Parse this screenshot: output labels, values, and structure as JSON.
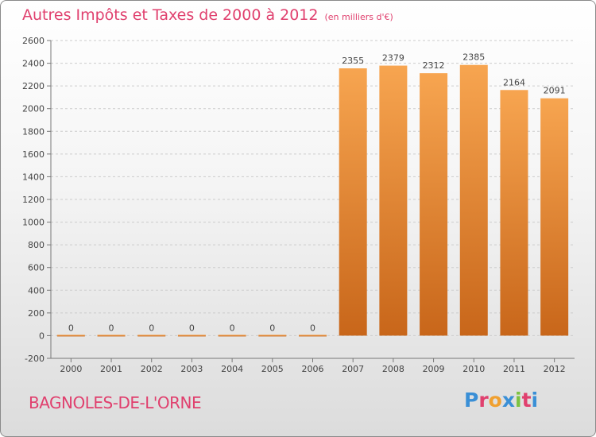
{
  "title": "Autres Impôts et Taxes de 2000 à 2012",
  "unit_label": "(en milliers d'€)",
  "location": "BAGNOLES-DE-L'ORNE",
  "logo": {
    "text": "Proxiti",
    "colors": [
      "#3a8fd6",
      "#e0406e",
      "#f0a030",
      "#3a8fd6",
      "#7cc242",
      "#e0406e",
      "#3a8fd6"
    ]
  },
  "colors": {
    "title": "#e0406e",
    "bar": "#f08a30",
    "bar_light": "#f7a550",
    "bar_dark": "#cc6a1a",
    "grid": "#cccccc"
  },
  "chart_data": {
    "type": "bar",
    "title": "Autres Impôts et Taxes de 2000 à 2012",
    "subtitle": "(en milliers d'€)",
    "xlabel": "",
    "ylabel": "",
    "categories": [
      "2000",
      "2001",
      "2002",
      "2003",
      "2004",
      "2005",
      "2006",
      "2007",
      "2008",
      "2009",
      "2010",
      "2011",
      "2012"
    ],
    "values": [
      0,
      0,
      0,
      0,
      0,
      0,
      0,
      2355,
      2379,
      2312,
      2385,
      2164,
      2091
    ],
    "ylim": [
      -200,
      2600
    ],
    "yticks": [
      -200,
      0,
      200,
      400,
      600,
      800,
      1000,
      1200,
      1400,
      1600,
      1800,
      2000,
      2200,
      2400,
      2600
    ],
    "grid": "horizontal-dashed",
    "legend": "none"
  }
}
